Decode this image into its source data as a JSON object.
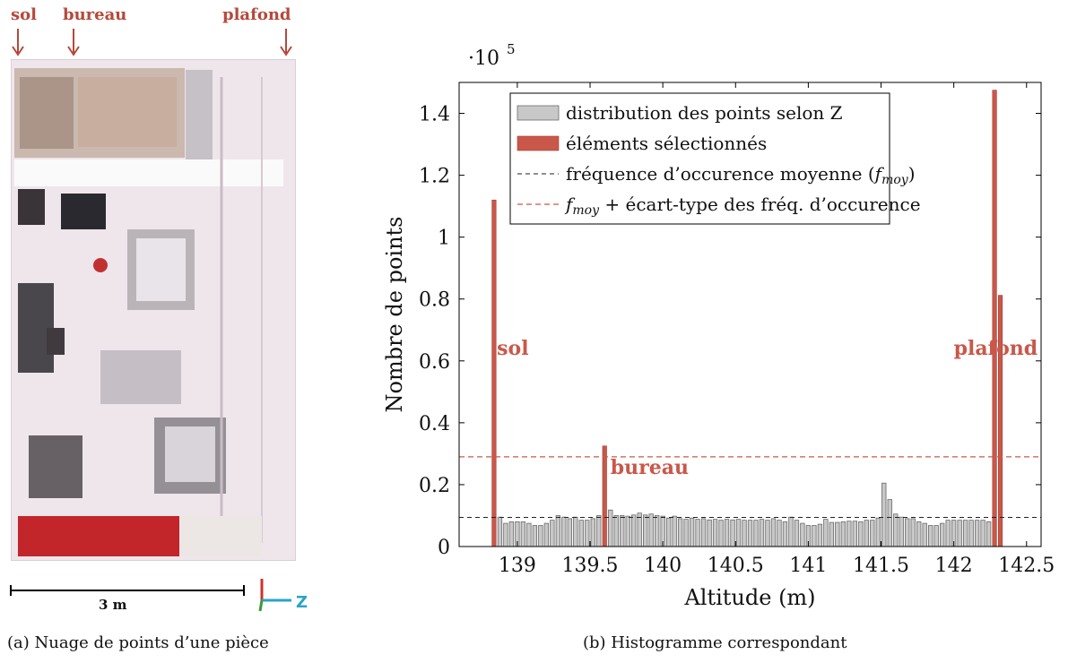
{
  "left_panel": {
    "markers": [
      "sol",
      "bureau",
      "plafond"
    ],
    "scale_label": "3 m",
    "axis_label": "Z",
    "caption": "(a) Nuage de points d’une pièce"
  },
  "right_panel": {
    "caption": "(b) Histogramme correspondant"
  },
  "colors": {
    "accent_red": "#c9584a",
    "bar_gray": "#c8c8c8",
    "z_blue": "#2aa3c7"
  },
  "chart_data": {
    "type": "bar",
    "xlabel": "Altitude (m)",
    "ylabel": "Nombre de points",
    "y_multiplier": "·10",
    "y_multiplier_exp": "5",
    "xlim": [
      138.6,
      142.6
    ],
    "ylim": [
      0,
      1.5
    ],
    "xticks": [
      139,
      139.5,
      140,
      140.5,
      141,
      141.5,
      142,
      142.5
    ],
    "yticks": [
      0,
      0.2,
      0.4,
      0.6,
      0.8,
      1,
      1.2,
      1.4
    ],
    "bar_width": 0.028,
    "legend_position": "top-center",
    "legend": [
      {
        "label": "distribution des points selon Z",
        "kind": "gray-bar"
      },
      {
        "label": "éléments sélectionnés",
        "kind": "red-bar"
      },
      {
        "label_before": "fréquence d’occurence moyenne (",
        "math": "f",
        "sub": "moy",
        "label_after": ")",
        "kind": "black-dash"
      },
      {
        "label_before": "",
        "math": "f",
        "sub": "moy",
        "label_after": " + écart-type des fréq. d’occurence",
        "kind": "red-dash"
      }
    ],
    "lines": {
      "mean": 0.094,
      "mean_plus_std": 0.29
    },
    "series": [
      {
        "name": "distribution des points selon Z",
        "x": [
          138.88,
          138.92,
          138.96,
          139.0,
          139.04,
          139.08,
          139.12,
          139.16,
          139.2,
          139.24,
          139.28,
          139.32,
          139.36,
          139.4,
          139.44,
          139.48,
          139.52,
          139.56,
          139.64,
          139.68,
          139.72,
          139.76,
          139.8,
          139.84,
          139.88,
          139.92,
          139.96,
          140.0,
          140.04,
          140.08,
          140.12,
          140.16,
          140.2,
          140.24,
          140.28,
          140.32,
          140.36,
          140.4,
          140.44,
          140.48,
          140.52,
          140.56,
          140.6,
          140.64,
          140.68,
          140.72,
          140.76,
          140.8,
          140.84,
          140.88,
          140.92,
          140.96,
          141.0,
          141.04,
          141.08,
          141.12,
          141.16,
          141.2,
          141.24,
          141.28,
          141.32,
          141.36,
          141.4,
          141.44,
          141.48,
          141.52,
          141.56,
          141.6,
          141.64,
          141.68,
          141.72,
          141.76,
          141.8,
          141.84,
          141.88,
          141.92,
          141.96,
          142.0,
          142.04,
          142.08,
          142.12,
          142.16,
          142.2,
          142.24
        ],
        "values": [
          0.095,
          0.075,
          0.08,
          0.08,
          0.08,
          0.075,
          0.068,
          0.068,
          0.075,
          0.085,
          0.1,
          0.095,
          0.09,
          0.095,
          0.085,
          0.085,
          0.09,
          0.1,
          0.118,
          0.1,
          0.1,
          0.098,
          0.102,
          0.108,
          0.102,
          0.105,
          0.1,
          0.098,
          0.092,
          0.098,
          0.09,
          0.088,
          0.092,
          0.088,
          0.09,
          0.086,
          0.088,
          0.085,
          0.088,
          0.086,
          0.088,
          0.085,
          0.085,
          0.085,
          0.088,
          0.085,
          0.09,
          0.085,
          0.08,
          0.095,
          0.085,
          0.075,
          0.068,
          0.068,
          0.072,
          0.088,
          0.078,
          0.078,
          0.08,
          0.082,
          0.082,
          0.08,
          0.085,
          0.085,
          0.092,
          0.205,
          0.152,
          0.105,
          0.095,
          0.09,
          0.09,
          0.08,
          0.075,
          0.068,
          0.068,
          0.075,
          0.085,
          0.085,
          0.085,
          0.085,
          0.085,
          0.085,
          0.085,
          0.08
        ]
      },
      {
        "name": "éléments sélectionnés",
        "x": [
          138.84,
          139.6,
          142.28,
          142.32
        ],
        "values": [
          1.12,
          0.325,
          1.475,
          0.812
        ]
      }
    ],
    "annotations": [
      {
        "text": "sol",
        "x": 138.86,
        "y": 0.62
      },
      {
        "text": "bureau",
        "x": 139.64,
        "y": 0.235
      },
      {
        "text": "plafond",
        "x": 142.0,
        "y": 0.62
      }
    ]
  }
}
